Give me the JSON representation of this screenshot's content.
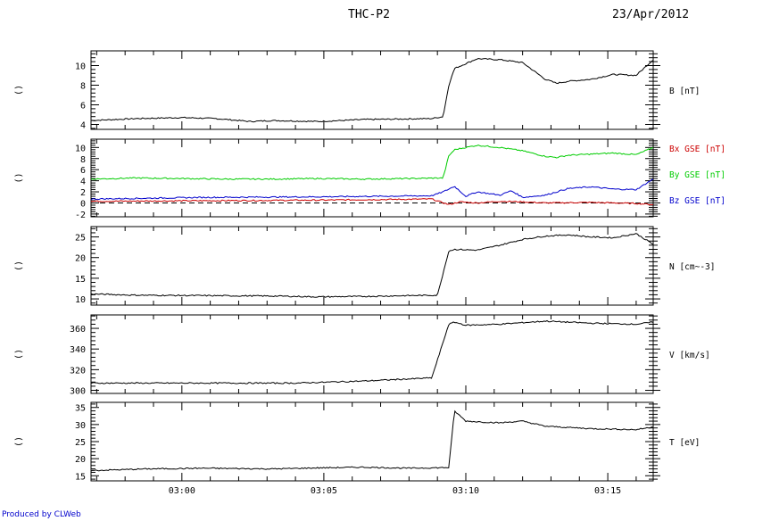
{
  "header": {
    "title": "THC-P2",
    "date": "23/Apr/2012"
  },
  "footer": "Produced by CLWeb",
  "chart_data": [
    {
      "type": "line",
      "side_label": "()",
      "yticks": [
        4,
        6,
        8,
        10
      ],
      "ylim": [
        3.5,
        11.5
      ],
      "series": [
        {
          "name": "B [nT]",
          "color": "#000000",
          "t": [
            0,
            4,
            8,
            11,
            12,
            13,
            14,
            16,
            20,
            24,
            30,
            31,
            31.5,
            32,
            33,
            34,
            36,
            38,
            40,
            41,
            42,
            44,
            46,
            48,
            49.5
          ],
          "v": [
            4.4,
            4.6,
            4.7,
            4.6,
            4.5,
            4.4,
            4.3,
            4.4,
            4.3,
            4.5,
            4.6,
            4.8,
            8.0,
            9.7,
            10.2,
            10.7,
            10.6,
            10.3,
            8.6,
            8.2,
            8.4,
            8.6,
            9.1,
            9.0,
            10.6
          ]
        }
      ]
    },
    {
      "type": "line",
      "side_label": "()",
      "yticks": [
        -2,
        0,
        2,
        4,
        6,
        8,
        10
      ],
      "ylim": [
        -2.5,
        11.5
      ],
      "series": [
        {
          "name": "Bx GSE [nT]",
          "color": "#cc0000",
          "t": [
            0,
            10,
            20,
            30,
            31.5,
            32.5,
            34,
            36,
            38,
            40,
            44,
            48,
            49.5
          ],
          "v": [
            0.3,
            0.4,
            0.5,
            0.7,
            -0.3,
            0.2,
            0.0,
            0.3,
            0.2,
            0.0,
            0.1,
            -0.1,
            -0.3
          ]
        },
        {
          "name": "By GSE [nT]",
          "color": "#00cc00",
          "t": [
            0,
            4,
            8,
            12,
            16,
            20,
            24,
            28,
            31,
            31.5,
            32,
            33,
            34,
            36,
            38,
            40,
            41,
            42,
            44,
            46,
            48,
            49.5
          ],
          "v": [
            4.3,
            4.5,
            4.4,
            4.3,
            4.3,
            4.4,
            4.3,
            4.4,
            4.5,
            8.5,
            9.6,
            10.0,
            10.4,
            10.0,
            9.4,
            8.4,
            8.2,
            8.6,
            8.8,
            9.0,
            8.7,
            10.0
          ]
        },
        {
          "name": "Bz GSE [nT]",
          "color": "#0000cc",
          "t": [
            0,
            10,
            20,
            30,
            31,
            32,
            33,
            34,
            36,
            37,
            38,
            40,
            42,
            44,
            46,
            48,
            49.5
          ],
          "v": [
            0.7,
            1.0,
            1.1,
            1.3,
            2.0,
            3.0,
            1.2,
            2.0,
            1.4,
            2.2,
            1.0,
            1.4,
            2.6,
            2.9,
            2.5,
            2.4,
            4.3
          ]
        }
      ],
      "zero_line": true
    },
    {
      "type": "line",
      "side_label": "()",
      "yticks": [
        10,
        15,
        20,
        25
      ],
      "ylim": [
        8.5,
        27.5
      ],
      "series": [
        {
          "name": "N [cm^-3]",
          "label": "N [cm~-3]",
          "color": "#000000",
          "t": [
            0,
            4,
            10,
            16,
            20,
            24,
            28,
            30.5,
            31.5,
            32,
            34,
            36,
            38,
            40,
            42,
            44,
            46,
            48,
            49.5
          ],
          "v": [
            11.2,
            10.9,
            10.8,
            10.7,
            10.5,
            10.6,
            10.8,
            10.9,
            21.6,
            22.0,
            21.8,
            23.0,
            24.4,
            25.2,
            25.5,
            25.0,
            24.8,
            25.8,
            23.2
          ]
        }
      ]
    },
    {
      "type": "line",
      "side_label": "()",
      "yticks": [
        300,
        320,
        340,
        360
      ],
      "ylim": [
        297,
        373
      ],
      "series": [
        {
          "name": "V [km/s]",
          "color": "#000000",
          "t": [
            0,
            6,
            12,
            18,
            24,
            30,
            31.5,
            32,
            33,
            36,
            40,
            44,
            48,
            49.5
          ],
          "v": [
            307,
            307,
            307,
            307,
            309,
            312,
            364,
            366,
            363,
            364,
            367,
            365,
            364,
            366
          ]
        }
      ]
    },
    {
      "type": "line",
      "side_label": "()",
      "yticks": [
        15,
        20,
        25,
        30,
        35
      ],
      "ylim": [
        13.5,
        36.5
      ],
      "series": [
        {
          "name": "T [eV]",
          "color": "#000000",
          "t": [
            0,
            5,
            10,
            16,
            20,
            24,
            28,
            31.5,
            32,
            33,
            36,
            38,
            40,
            44,
            48,
            49.5
          ],
          "v": [
            16.5,
            17.0,
            17.2,
            17.0,
            17.3,
            17.5,
            17.2,
            17.4,
            34.0,
            31.0,
            30.5,
            31.0,
            29.5,
            28.8,
            28.5,
            29.3
          ]
        }
      ]
    }
  ],
  "x_axis": {
    "labels": [
      "03:00",
      "03:05",
      "03:10",
      "03:15"
    ],
    "label_minutes": [
      0,
      5,
      10,
      15
    ],
    "start_minute_offset": -3.2,
    "end_minute_offset": 16.6
  }
}
